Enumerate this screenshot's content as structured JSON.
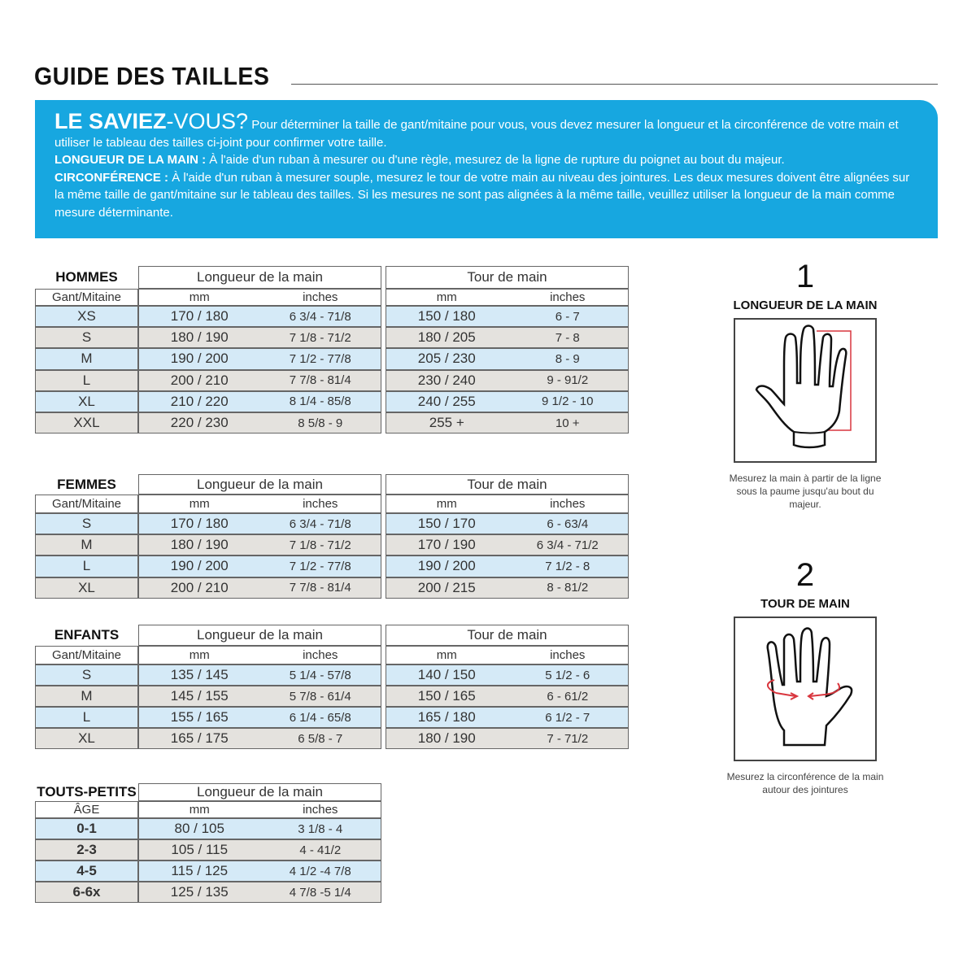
{
  "title": "GUIDE DES TAILLES",
  "banner": {
    "heading_bold": "LE SAVIEZ",
    "heading_light": "-VOUS?",
    "intro": "Pour déterminer la taille de gant/mitaine pour vous, vous devez mesurer la longueur et la circonférence de votre main et utiliser le tableau des tailles ci-joint pour confirmer votre taille.",
    "length_label": "LONGUEUR DE LA MAIN :",
    "length_text": "À l'aide d'un ruban à mesurer ou d'une règle, mesurez de la ligne de rupture du poignet au bout du majeur.",
    "circ_label": "CIRCONFÉRENCE :",
    "circ_text": "À l'aide d'un ruban à mesurer souple, mesurez le tour de votre main au niveau des jointures. Les deux mesures doivent être alignées sur la même taille de gant/mitaine sur le tableau des tailles. Si les mesures ne sont pas alignées à la même taille, veuillez utiliser la longueur de la main comme mesure déterminante."
  },
  "colors": {
    "banner": "#17a7e0",
    "row_blue": "#d5eaf7",
    "row_grey": "#e4e2de",
    "measure_red": "#d9363e"
  },
  "tables": [
    {
      "section": "HOMMES",
      "col_label": "Gant/Mitaine",
      "length_header": "Longueur de la main",
      "tour_header": "Tour de main",
      "mm": "mm",
      "inches": "inches",
      "rows": [
        {
          "size": "XS",
          "len_mm": "170 / 180",
          "len_in": "6 3/4 - 71/8",
          "tour_mm": "150 / 180",
          "tour_in": "6  - 7"
        },
        {
          "size": "S",
          "len_mm": "180 / 190",
          "len_in": "7 1/8 - 71/2",
          "tour_mm": "180 / 205",
          "tour_in": "7 - 8"
        },
        {
          "size": "M",
          "len_mm": "190 / 200",
          "len_in": "7 1/2 - 77/8",
          "tour_mm": "205 / 230",
          "tour_in": "8 - 9"
        },
        {
          "size": "L",
          "len_mm": "200 / 210",
          "len_in": "7 7/8 - 81/4",
          "tour_mm": "230 / 240",
          "tour_in": "9 - 91/2"
        },
        {
          "size": "XL",
          "len_mm": "210 / 220",
          "len_in": "8 1/4 - 85/8",
          "tour_mm": "240 / 255",
          "tour_in": "9 1/2 - 10"
        },
        {
          "size": "XXL",
          "len_mm": "220 / 230",
          "len_in": "8 5/8 - 9",
          "tour_mm": "255 +",
          "tour_in": "10 +"
        }
      ]
    },
    {
      "section": "FEMMES",
      "col_label": "Gant/Mitaine",
      "length_header": "Longueur de la main",
      "tour_header": "Tour de main",
      "mm": "mm",
      "inches": "inches",
      "rows": [
        {
          "size": "S",
          "len_mm": "170 / 180",
          "len_in": "6 3/4 - 71/8",
          "tour_mm": "150 / 170",
          "tour_in": "6  - 63/4"
        },
        {
          "size": "M",
          "len_mm": "180 / 190",
          "len_in": "7 1/8 - 71/2",
          "tour_mm": "170 / 190",
          "tour_in": "6 3/4 - 71/2"
        },
        {
          "size": "L",
          "len_mm": "190 / 200",
          "len_in": "7 1/2 - 77/8",
          "tour_mm": "190 / 200",
          "tour_in": "7 1/2 - 8"
        },
        {
          "size": "XL",
          "len_mm": "200 / 210",
          "len_in": "7 7/8 - 81/4",
          "tour_mm": "200 / 215",
          "tour_in": "8 - 81/2"
        }
      ]
    },
    {
      "section": "ENFANTS",
      "col_label": "Gant/Mitaine",
      "length_header": "Longueur de la main",
      "tour_header": "Tour de main",
      "mm": "mm",
      "inches": "inches",
      "rows": [
        {
          "size": "S",
          "len_mm": "135 / 145",
          "len_in": "5 1/4 - 57/8",
          "tour_mm": "140 / 150",
          "tour_in": "5 1/2  - 6"
        },
        {
          "size": "M",
          "len_mm": "145 / 155",
          "len_in": "5 7/8 - 61/4",
          "tour_mm": "150 / 165",
          "tour_in": "6  - 61/2"
        },
        {
          "size": "L",
          "len_mm": "155 / 165",
          "len_in": "6 1/4 - 65/8",
          "tour_mm": "165 / 180",
          "tour_in": "6 1/2 - 7"
        },
        {
          "size": "XL",
          "len_mm": "165 / 175",
          "len_in": "6 5/8 - 7",
          "tour_mm": "180 / 190",
          "tour_in": "7 - 71/2"
        }
      ]
    },
    {
      "section": "TOUTS-PETITS",
      "col_label": "ÂGE",
      "length_header": "Longueur de la main",
      "mm": "mm",
      "inches": "inches",
      "rows": [
        {
          "size": "0-1",
          "len_mm": "80 / 105",
          "len_in": "3 1/8  - 4"
        },
        {
          "size": "2-3",
          "len_mm": "105 / 115",
          "len_in": "4  - 41/2"
        },
        {
          "size": "4-5",
          "len_mm": "115 / 125",
          "len_in": "4 1/2 -4 7/8"
        },
        {
          "size": "6-6x",
          "len_mm": "125 / 135",
          "len_in": "4 7/8 -5 1/4"
        }
      ]
    }
  ],
  "steps": [
    {
      "number": "1",
      "label": "LONGUEUR DE LA MAIN",
      "icon": "hand-length-icon",
      "caption": "Mesurez la main à partir de la ligne sous la paume jusqu'au bout du majeur."
    },
    {
      "number": "2",
      "label": "TOUR DE MAIN",
      "icon": "hand-circumference-icon",
      "caption": "Mesurez la circonférence de la main autour des jointures"
    }
  ]
}
